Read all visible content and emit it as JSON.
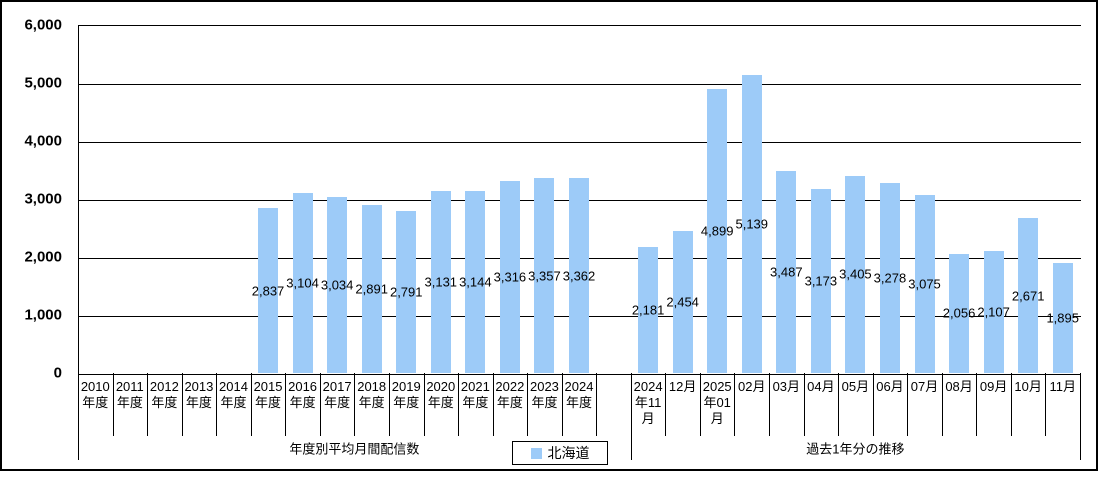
{
  "chart_data": {
    "type": "bar",
    "title": "",
    "xlabel": "",
    "ylabel": "",
    "ylim": [
      0,
      6000
    ],
    "ytick_interval": 1000,
    "yticks": [
      0,
      1000,
      2000,
      3000,
      4000,
      5000,
      6000
    ],
    "ytick_labels": [
      "0",
      "1,000",
      "2,000",
      "3,000",
      "4,000",
      "5,000",
      "6,000"
    ],
    "grid": true,
    "data_labels": true,
    "bar_color": "#9DCBF8",
    "line_color": "#000000",
    "series_name": "北海道",
    "legend": {
      "position": "bottom",
      "entries": [
        {
          "label": "北海道",
          "swatch_color": "#9DCBF8"
        }
      ]
    },
    "spacer_slots_between_groups": 1,
    "groups": [
      {
        "label": "年度別平均月間配信数",
        "categories": [
          "2010年度",
          "2011年度",
          "2012年度",
          "2013年度",
          "2014年度",
          "2015年度",
          "2016年度",
          "2017年度",
          "2018年度",
          "2019年度",
          "2020年度",
          "2021年度",
          "2022年度",
          "2023年度",
          "2024年度"
        ],
        "values": [
          null,
          null,
          null,
          null,
          null,
          2837,
          3104,
          3034,
          2891,
          2791,
          3131,
          3144,
          3316,
          3357,
          3362
        ]
      },
      {
        "label": "過去1年分の推移",
        "categories": [
          "2024年11月",
          "12月",
          "2025年01月",
          "02月",
          "03月",
          "04月",
          "05月",
          "06月",
          "07月",
          "08月",
          "09月",
          "10月",
          "11月"
        ],
        "values": [
          2181,
          2454,
          4899,
          5139,
          3487,
          3173,
          3405,
          3278,
          3075,
          2056,
          2107,
          2671,
          1895
        ]
      }
    ]
  }
}
